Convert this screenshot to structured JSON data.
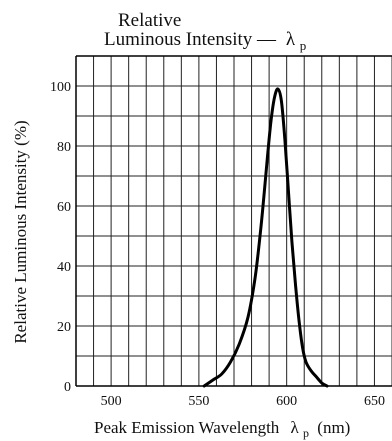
{
  "chart_data": {
    "type": "line",
    "title_line1": "Relative",
    "title_line2_text": "Luminous Intensity —",
    "title_symbol": "λ",
    "title_subscript": "p",
    "xlabel_text": "Peak Emission Wavelength",
    "xlabel_symbol": "λ",
    "xlabel_subscript": "p",
    "xlabel_unit": "(nm)",
    "ylabel": "Relative Luminous Intensity (%)",
    "xlim": [
      480,
      660
    ],
    "ylim": [
      0,
      110
    ],
    "xtick_labels": [
      "500",
      "550",
      "600",
      "650"
    ],
    "xticks": [
      500,
      550,
      600,
      650
    ],
    "ytick_labels": [
      "0",
      "20",
      "40",
      "60",
      "80",
      "100"
    ],
    "yticks": [
      0,
      20,
      40,
      60,
      80,
      100
    ],
    "grid": true,
    "grid_x_step": 10,
    "grid_y_step": 10,
    "series": [
      {
        "color": "#000000",
        "x": [
          553,
          558,
          563,
          568,
          573,
          578,
          582,
          585,
          587,
          589,
          591,
          593,
          595,
          597,
          599,
          601,
          603,
          605,
          607,
          609,
          611,
          614,
          617,
          620,
          623
        ],
        "y": [
          0,
          2,
          4,
          8,
          14,
          23,
          36,
          51,
          63,
          76,
          88,
          96,
          99,
          95,
          82,
          65,
          48,
          34,
          22,
          13,
          8,
          5,
          3,
          1,
          0
        ]
      }
    ]
  }
}
